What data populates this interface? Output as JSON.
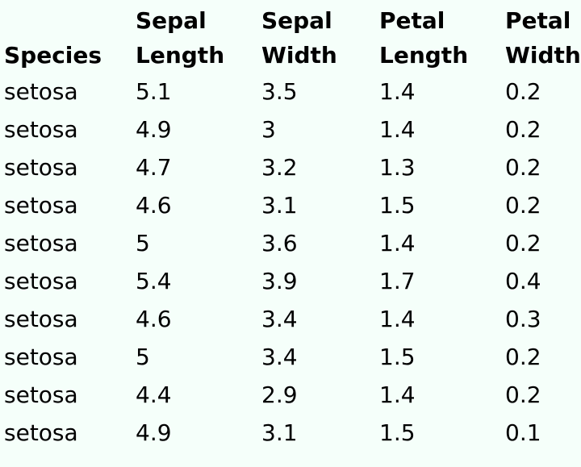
{
  "table": {
    "headers": [
      "Species",
      "Sepal Length",
      "Sepal Width",
      "Petal Length",
      "Petal Width"
    ],
    "rows": [
      [
        "setosa",
        "5.1",
        "3.5",
        "1.4",
        "0.2"
      ],
      [
        "setosa",
        "4.9",
        "3",
        "1.4",
        "0.2"
      ],
      [
        "setosa",
        "4.7",
        "3.2",
        "1.3",
        "0.2"
      ],
      [
        "setosa",
        "4.6",
        "3.1",
        "1.5",
        "0.2"
      ],
      [
        "setosa",
        "5",
        "3.6",
        "1.4",
        "0.2"
      ],
      [
        "setosa",
        "5.4",
        "3.9",
        "1.7",
        "0.4"
      ],
      [
        "setosa",
        "4.6",
        "3.4",
        "1.4",
        "0.3"
      ],
      [
        "setosa",
        "5",
        "3.4",
        "1.5",
        "0.2"
      ],
      [
        "setosa",
        "4.4",
        "2.9",
        "1.4",
        "0.2"
      ],
      [
        "setosa",
        "4.9",
        "3.1",
        "1.5",
        "0.1"
      ]
    ]
  },
  "colors": {
    "background": "#f5fffa",
    "text": "#000000"
  }
}
